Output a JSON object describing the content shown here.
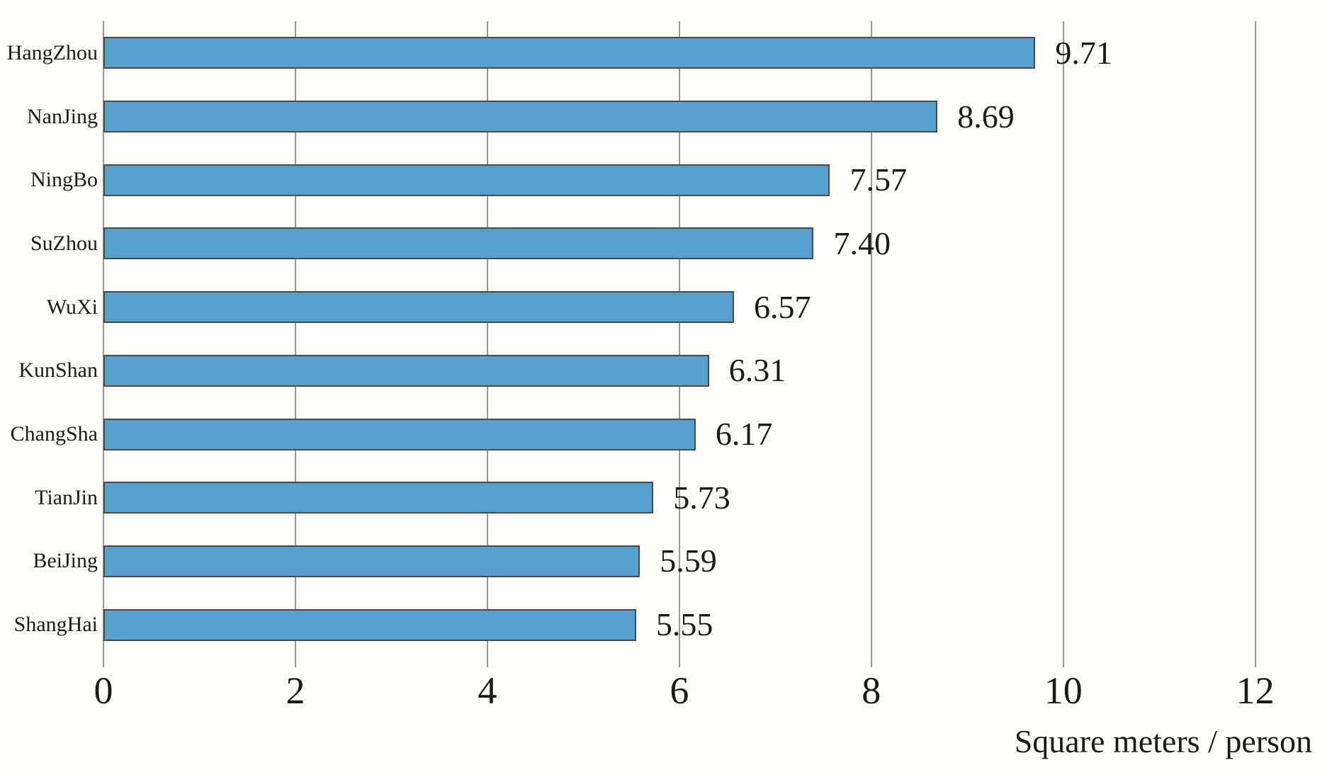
{
  "chart_data": {
    "type": "bar",
    "orientation": "horizontal",
    "title": "",
    "xlabel": "Square meters / person",
    "ylabel": "",
    "categories": [
      "HangZhou",
      "NanJing",
      "NingBo",
      "SuZhou",
      "WuXi",
      "KunShan",
      "ChangSha",
      "TianJin",
      "BeiJing",
      "ShangHai"
    ],
    "values": [
      9.71,
      8.69,
      7.57,
      7.4,
      6.57,
      6.31,
      6.17,
      5.73,
      5.59,
      5.55
    ],
    "value_labels": [
      "9.71",
      "8.69",
      "7.57",
      "7.40",
      "6.57",
      "6.31",
      "6.17",
      "5.73",
      "5.59",
      "5.55"
    ],
    "xticks": [
      0,
      2,
      4,
      6,
      8,
      10,
      12
    ],
    "xlim": [
      0,
      12.8
    ],
    "grid": "vertical-only",
    "legend": "none",
    "colors": {
      "bar": "#57A0CE",
      "bar_border": "#4A4A4A",
      "gridline": "#999999",
      "text": "#1A1A1A",
      "background": "#FFFEFA"
    }
  }
}
